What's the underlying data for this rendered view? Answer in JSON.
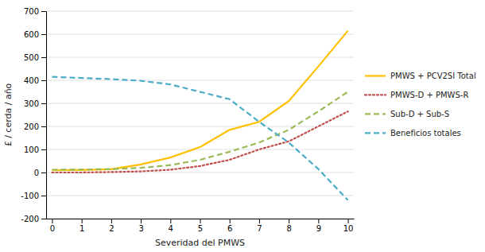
{
  "chart_data": {
    "type": "line",
    "x": [
      0,
      1,
      2,
      3,
      4,
      5,
      6,
      7,
      8,
      9,
      10
    ],
    "xlabel": "Severidad del PMWS",
    "ylabel": "£ / cerda / año",
    "xlim": [
      -0.2,
      10.2
    ],
    "ylim": [
      -200,
      700
    ],
    "xticks": [
      0,
      1,
      2,
      3,
      4,
      5,
      6,
      7,
      8,
      9,
      10
    ],
    "yticks": [
      -200,
      -100,
      0,
      100,
      200,
      300,
      400,
      500,
      600,
      700
    ],
    "grid": "y",
    "legend": "right",
    "series": [
      {
        "name": "PMWS + PCV2SI Total",
        "color": "#FFC000",
        "line_style": "solid",
        "values": [
          10,
          11,
          14,
          35,
          65,
          110,
          185,
          220,
          310,
          460,
          615
        ]
      },
      {
        "name": "PMWS-D + PMWS-R",
        "color": "#C0504D",
        "line_style": "dotted",
        "values": [
          0,
          0,
          2,
          5,
          12,
          28,
          55,
          100,
          135,
          200,
          265
        ]
      },
      {
        "name": "Sub-D + Sub-S",
        "color": "#9BBB59",
        "line_style": "dashed",
        "values": [
          12,
          13,
          15,
          20,
          32,
          55,
          90,
          130,
          185,
          265,
          350
        ]
      },
      {
        "name": "Beneficios totales",
        "color": "#4BACC6",
        "line_style": "dashed",
        "values": [
          415,
          410,
          405,
          398,
          382,
          350,
          318,
          220,
          130,
          15,
          -120
        ]
      }
    ]
  }
}
